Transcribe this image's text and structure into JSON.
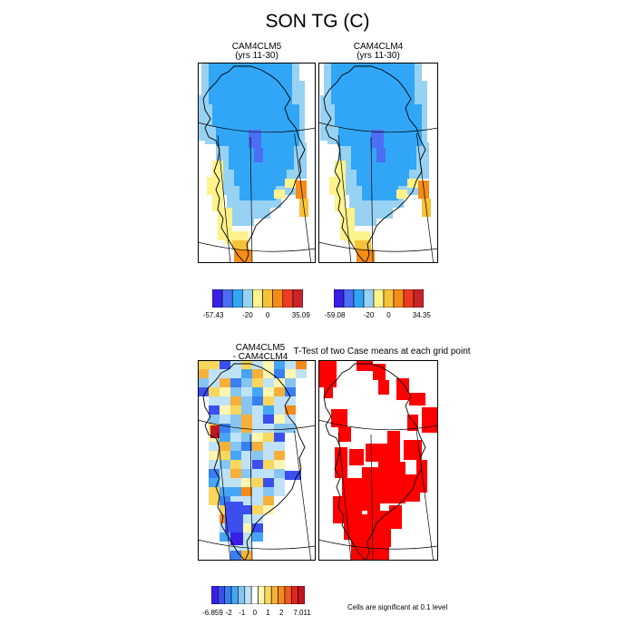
{
  "title": "SON TG (C)",
  "panels": {
    "p1": {
      "title": "CAM4CLM5",
      "subtitle": "(yrs 11-30)"
    },
    "p2": {
      "title": "CAM4CLM4",
      "subtitle": "(yrs 11-30)"
    },
    "p3": {
      "title": "CAM4CLM5",
      "subtitle": "- CAM4CLM4"
    },
    "p4": {
      "title": "T-Test of two Case means at each grid point"
    }
  },
  "colorbars": {
    "cb1": {
      "colors": [
        "#3a1fe6",
        "#4c6ef5",
        "#31a6f7",
        "#98d2f3",
        "#fdf28c",
        "#f7c23a",
        "#f58c16",
        "#ee3b22",
        "#c8242b"
      ],
      "labels": [
        "-57.43",
        "-20",
        "0",
        "35.09"
      ]
    },
    "cb2": {
      "colors": [
        "#3a1fe6",
        "#4c6ef5",
        "#31a6f7",
        "#98d2f3",
        "#fdf28c",
        "#f7c23a",
        "#f58c16",
        "#ee3b22",
        "#c8242b"
      ],
      "labels": [
        "-59.08",
        "-20",
        "0",
        "34.35"
      ]
    },
    "cb3": {
      "colors": [
        "#3a1fe6",
        "#3b4fef",
        "#3a7ff2",
        "#46a6f5",
        "#86c5f2",
        "#bfe2f7",
        "#ffffff",
        "#fdf5b0",
        "#f9d65c",
        "#f6b03a",
        "#f58a1c",
        "#ef5a1e",
        "#e2261e",
        "#c0161d"
      ],
      "labels": [
        "-6.859",
        "-2",
        "-1",
        "0",
        "1",
        "2",
        "7.011"
      ]
    }
  },
  "note": "Cells are significant at 0.1 level"
}
